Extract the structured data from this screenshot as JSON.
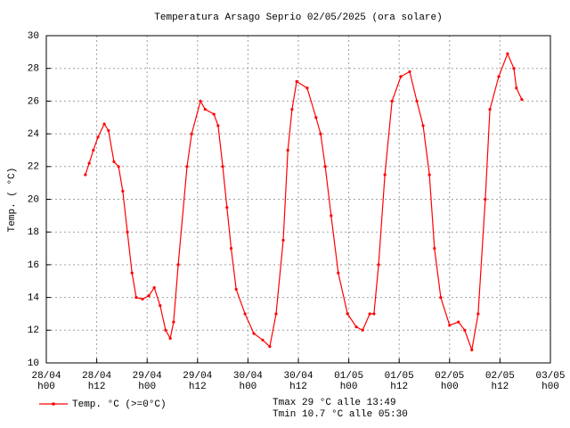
{
  "chart_data": {
    "type": "line",
    "title": "Temperatura Arsago Seprio 02/05/2025 (ora solare)",
    "ylabel": "Temp. ( °C)",
    "annotations": [
      "Tmax 29 °C alle 13:49",
      "Tmin 10.7 °C alle 05:30"
    ],
    "xlim": [
      0,
      120
    ],
    "ylim": [
      10,
      30
    ],
    "yticks": [
      10,
      12,
      14,
      16,
      18,
      20,
      22,
      24,
      26,
      28,
      30
    ],
    "xticks": [
      {
        "value": 0,
        "label": "28/04\nh00"
      },
      {
        "value": 12,
        "label": "28/04\nh12"
      },
      {
        "value": 24,
        "label": "29/04\nh00"
      },
      {
        "value": 36,
        "label": "29/04\nh12"
      },
      {
        "value": 48,
        "label": "30/04\nh00"
      },
      {
        "value": 60,
        "label": "30/04\nh12"
      },
      {
        "value": 72,
        "label": "01/05\nh00"
      },
      {
        "value": 84,
        "label": "01/05\nh12"
      },
      {
        "value": 96,
        "label": "02/05\nh00"
      },
      {
        "value": 108,
        "label": "02/05\nh12"
      },
      {
        "value": 120,
        "label": "03/05\nh00"
      }
    ],
    "grid": true,
    "x": [
      9.3,
      10.2,
      11.2,
      12.3,
      13.8,
      14.8,
      16.1,
      17.2,
      18.2,
      19.3,
      20.4,
      21.4,
      22.9,
      24.4,
      25.7,
      27.1,
      28.4,
      29.5,
      30.3,
      31.4,
      33.5,
      34.6,
      36.7,
      37.8,
      39.9,
      40.9,
      42.0,
      43.0,
      44.0,
      45.2,
      47.3,
      49.4,
      51.5,
      53.2,
      54.7,
      56.4,
      57.5,
      58.5,
      59.6,
      62.1,
      64.2,
      65.3,
      66.4,
      67.8,
      69.5,
      71.7,
      73.8,
      75.3,
      77.0,
      78.0,
      79.1,
      80.6,
      82.3,
      84.4,
      86.5,
      88.2,
      89.7,
      91.2,
      92.4,
      93.9,
      96.0,
      98.1,
      99.6,
      101.3,
      102.8,
      104.5,
      105.6,
      107.7,
      109.8,
      111.3,
      111.9,
      113.2
    ],
    "series": [
      {
        "name": "Temp. °C (>=0°C)",
        "color": "#ff0000",
        "values": [
          21.5,
          22.2,
          23.0,
          23.8,
          24.6,
          24.2,
          22.3,
          22.0,
          20.5,
          18.0,
          15.5,
          14.0,
          13.9,
          14.1,
          14.6,
          13.5,
          12.0,
          11.5,
          12.5,
          16.0,
          22.0,
          24.0,
          26.0,
          25.5,
          25.2,
          24.5,
          22.0,
          19.5,
          17.0,
          14.5,
          13.0,
          11.8,
          11.4,
          11.0,
          13.0,
          17.5,
          23.0,
          25.5,
          27.2,
          26.8,
          25.0,
          24.0,
          22.0,
          19.0,
          15.5,
          13.0,
          12.2,
          12.0,
          13.0,
          13.0,
          16.0,
          21.5,
          26.0,
          27.5,
          27.8,
          26.0,
          24.5,
          21.5,
          17.0,
          14.0,
          12.3,
          12.5,
          12.0,
          10.8,
          13.0,
          20.0,
          25.5,
          27.5,
          28.9,
          28.0,
          26.8,
          26.1
        ]
      }
    ]
  }
}
